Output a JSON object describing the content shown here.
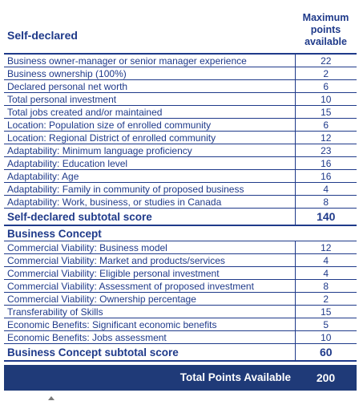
{
  "header": {
    "label": "Self-declared",
    "points_line1": "Maximum",
    "points_line2": "points",
    "points_line3": "available"
  },
  "self_declared_rows": [
    {
      "label": "Business owner-manager or senior manager experience",
      "points": "22"
    },
    {
      "label": "Business ownership (100%)",
      "points": "2"
    },
    {
      "label": "Declared personal net worth",
      "points": "6"
    },
    {
      "label": "Total personal investment",
      "points": "10"
    },
    {
      "label": "Total jobs created and/or maintained",
      "points": "15"
    },
    {
      "label": "Location: Population size of enrolled community",
      "points": "6"
    },
    {
      "label": "Location: Regional District of enrolled community",
      "points": "12"
    },
    {
      "label": "Adaptability: Minimum language proficiency",
      "points": "23"
    },
    {
      "label": "Adaptability: Education level",
      "points": "16"
    },
    {
      "label": "Adaptability: Age",
      "points": "16"
    },
    {
      "label": "Adaptability: Family in community of proposed business",
      "points": "4"
    },
    {
      "label": "Adaptability: Work, business, or studies in Canada",
      "points": "8"
    }
  ],
  "self_declared_subtotal": {
    "label": "Self-declared subtotal score",
    "points": "140"
  },
  "business_concept_heading": "Business Concept",
  "business_concept_rows": [
    {
      "label": "Commercial Viability: Business model",
      "points": "12"
    },
    {
      "label": "Commercial Viability: Market and products/services",
      "points": "4"
    },
    {
      "label": "Commercial Viability: Eligible personal investment",
      "points": "4"
    },
    {
      "label": "Commercial Viability: Assessment of proposed investment",
      "points": "8"
    },
    {
      "label": "Commercial Viability: Ownership percentage",
      "points": "2"
    },
    {
      "label": "Transferability of Skills",
      "points": "15"
    },
    {
      "label": "Economic Benefits: Significant economic benefits",
      "points": "5"
    },
    {
      "label": "Economic Benefits: Jobs assessment",
      "points": "10"
    }
  ],
  "business_concept_subtotal": {
    "label": "Business Concept subtotal score",
    "points": "60"
  },
  "total": {
    "label": "Total Points Available",
    "points": "200"
  },
  "colors": {
    "text": "#1F3A8A",
    "total_bar": "#1F3A78"
  }
}
